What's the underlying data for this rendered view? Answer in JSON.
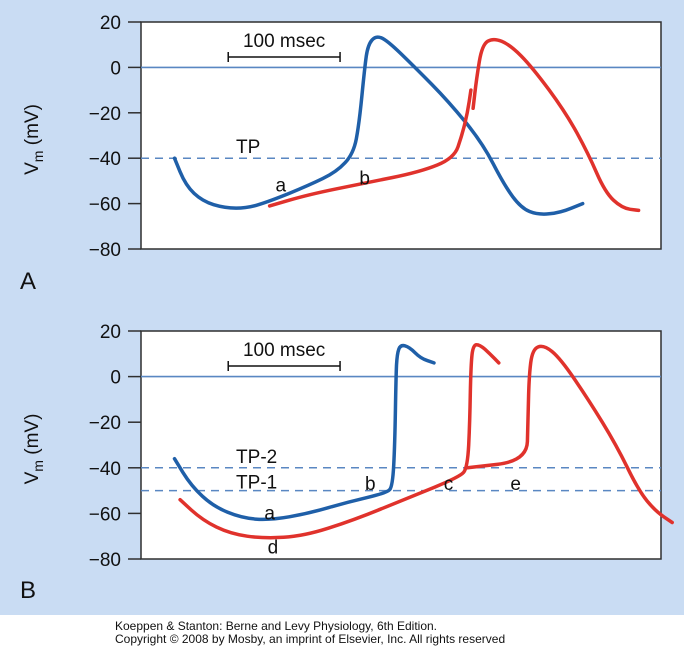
{
  "credit": {
    "line1": "Koeppen & Stanton: Berne and Levy Physiology, 6th Edition.",
    "line2": "Copyright © 2008 by Mosby, an imprint of Elsevier, Inc. All rights reserved"
  },
  "colors": {
    "blue": "#1f5fa8",
    "red": "#e0322c",
    "axis": "#2f2f2f",
    "zero_line": "#5a87c2",
    "dashed": "#5a87c2",
    "panel_bg": "#c9dcf3"
  },
  "chart_data": [
    {
      "panel": "A",
      "type": "line",
      "ylabel_main": "V",
      "ylabel_sub": "m",
      "ylabel_unit": " (mV)",
      "yticks": [
        "20",
        "0",
        "−20",
        "−40",
        "−60",
        "−80"
      ],
      "ytick_values": [
        20,
        0,
        -20,
        -40,
        -60,
        -80
      ],
      "ylim": [
        -80,
        20
      ],
      "xlim_ms": [
        0,
        465
      ],
      "scale_bar": {
        "label": "100 msec",
        "length_ms": 100
      },
      "thresholds": [
        {
          "label": "TP",
          "value": -40
        }
      ],
      "annotations": [
        {
          "text": "a",
          "x_ms": 125,
          "y": -52
        },
        {
          "text": "b",
          "x_ms": 200,
          "y": -49
        }
      ],
      "series": [
        {
          "name": "blue",
          "color": "blue",
          "points": [
            [
              30,
              -40
            ],
            [
              40,
              -52
            ],
            [
              55,
              -59
            ],
            [
              75,
              -62
            ],
            [
              95,
              -62
            ],
            [
              115,
              -59
            ],
            [
              150,
              -52
            ],
            [
              175,
              -46
            ],
            [
              190,
              -38
            ],
            [
              195,
              -25
            ],
            [
              200,
              0
            ],
            [
              203,
              10
            ],
            [
              210,
              14
            ],
            [
              220,
              12
            ],
            [
              245,
              0
            ],
            [
              275,
              -15
            ],
            [
              305,
              -33
            ],
            [
              325,
              -52
            ],
            [
              340,
              -62
            ],
            [
              355,
              -65
            ],
            [
              375,
              -64
            ],
            [
              395,
              -60
            ]
          ]
        },
        {
          "name": "red",
          "color": "red",
          "points": [
            [
              115,
              -61
            ],
            [
              150,
              -56
            ],
            [
              200,
              -51
            ],
            [
              250,
              -46
            ],
            [
              280,
              -40
            ],
            [
              287,
              -30
            ],
            [
              292,
              -20
            ],
            [
              295,
              -10
            ]
          ]
        },
        {
          "name": "red-upstroke",
          "color": "red",
          "points": [
            [
              297,
              -18
            ],
            [
              300,
              -5
            ],
            [
              305,
              10
            ],
            [
              315,
              13
            ],
            [
              330,
              10
            ],
            [
              350,
              0
            ],
            [
              380,
              -20
            ],
            [
              400,
              -38
            ],
            [
              415,
              -55
            ],
            [
              430,
              -62
            ],
            [
              445,
              -63
            ]
          ]
        }
      ],
      "panel_label": "A"
    },
    {
      "panel": "B",
      "type": "line",
      "ylabel_main": "V",
      "ylabel_sub": "m",
      "ylabel_unit": " (mV)",
      "yticks": [
        "20",
        "0",
        "−20",
        "−40",
        "−60",
        "−80"
      ],
      "ytick_values": [
        20,
        0,
        -20,
        -40,
        -60,
        -80
      ],
      "ylim": [
        -80,
        20
      ],
      "xlim_ms": [
        0,
        465
      ],
      "scale_bar": {
        "label": "100 msec",
        "length_ms": 100
      },
      "thresholds": [
        {
          "label": "TP-2",
          "value": -40
        },
        {
          "label": "TP-1",
          "value": -50
        }
      ],
      "annotations": [
        {
          "text": "a",
          "x_ms": 115,
          "y": -60
        },
        {
          "text": "d",
          "x_ms": 118,
          "y": -75
        },
        {
          "text": "b",
          "x_ms": 205,
          "y": -47
        },
        {
          "text": "c",
          "x_ms": 275,
          "y": -47
        },
        {
          "text": "e",
          "x_ms": 335,
          "y": -47
        }
      ],
      "series": [
        {
          "name": "blue",
          "color": "blue",
          "points": [
            [
              30,
              -36
            ],
            [
              45,
              -48
            ],
            [
              65,
              -57
            ],
            [
              90,
              -62
            ],
            [
              115,
              -63
            ],
            [
              150,
              -60
            ],
            [
              185,
              -55
            ],
            [
              220,
              -51
            ],
            [
              225,
              -48
            ],
            [
              227,
              -30
            ],
            [
              228,
              0
            ],
            [
              229,
              10
            ],
            [
              232,
              14
            ],
            [
              240,
              13
            ],
            [
              250,
              8
            ],
            [
              262,
              6
            ]
          ]
        },
        {
          "name": "red",
          "color": "red",
          "points": [
            [
              35,
              -54
            ],
            [
              55,
              -63
            ],
            [
              80,
              -69
            ],
            [
              110,
              -71
            ],
            [
              145,
              -70
            ],
            [
              190,
              -63
            ],
            [
              240,
              -53
            ],
            [
              285,
              -44
            ],
            [
              292,
              -40
            ],
            [
              294,
              -20
            ],
            [
              295,
              5
            ],
            [
              297,
              14
            ],
            [
              303,
              14
            ],
            [
              312,
              10
            ],
            [
              320,
              6
            ]
          ]
        },
        {
          "name": "red-e",
          "color": "red",
          "points": [
            [
              292,
              -40
            ],
            [
              345,
              -37
            ],
            [
              346,
              -20
            ],
            [
              347,
              0
            ],
            [
              350,
              12
            ],
            [
              360,
              14
            ],
            [
              375,
              8
            ],
            [
              400,
              -10
            ],
            [
              425,
              -30
            ],
            [
              445,
              -50
            ],
            [
              460,
              -59
            ],
            [
              475,
              -64
            ]
          ]
        }
      ],
      "panel_label": "B"
    }
  ]
}
